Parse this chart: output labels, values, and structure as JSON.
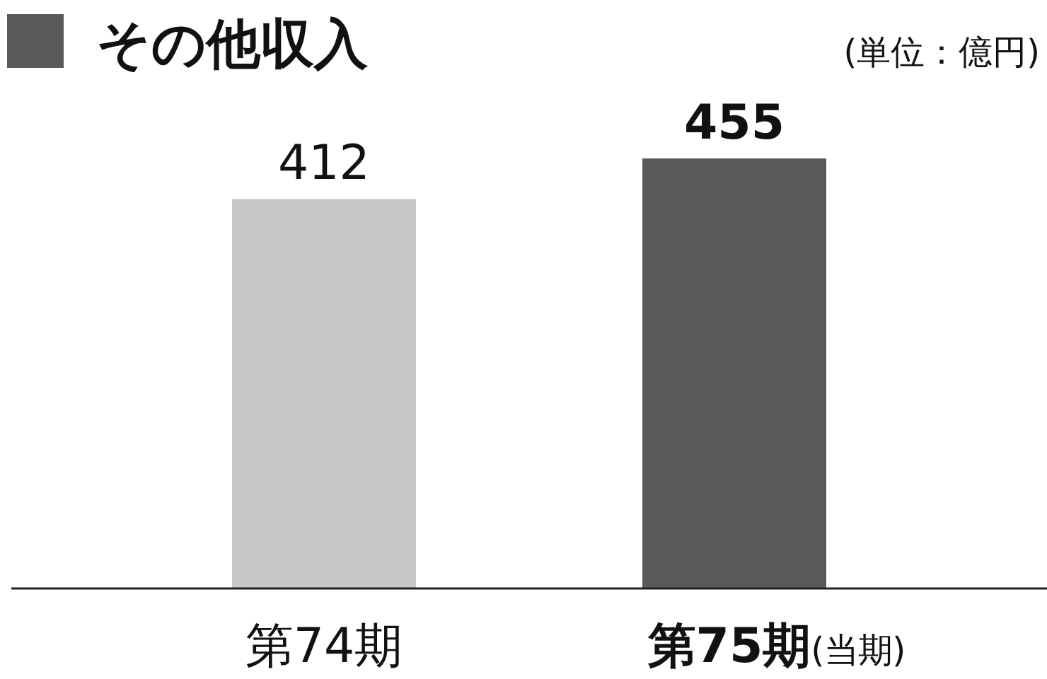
{
  "chart_data": {
    "type": "bar",
    "title": "その他収入",
    "annotations": [
      "(単位：億円)"
    ],
    "categories": [
      "第74期",
      "**第75期**(当期)"
    ],
    "values": [
      412,
      455
    ],
    "colors": [
      "#c8c8c8",
      "#595959"
    ],
    "data_labels": true
  }
}
